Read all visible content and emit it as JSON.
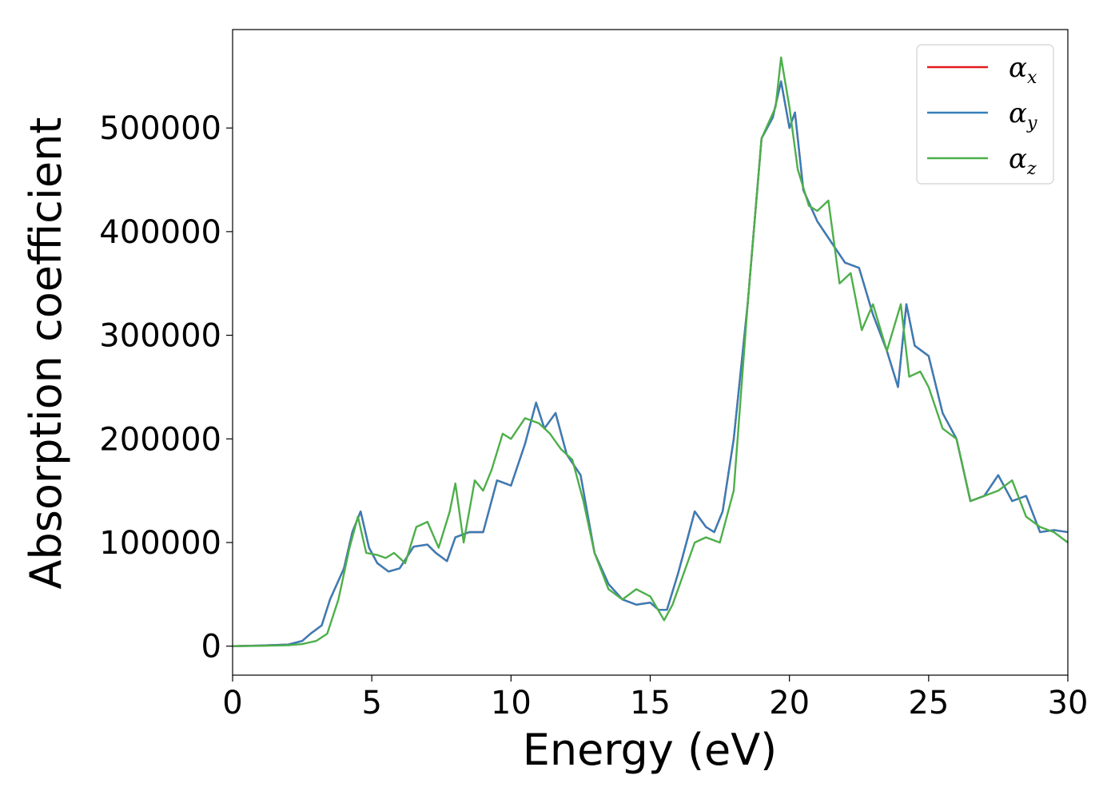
{
  "chart_data": {
    "type": "line",
    "title": "",
    "xlabel": "Energy (eV)",
    "ylabel": "Absorption coefficient",
    "xlim": [
      0,
      30
    ],
    "ylim": [
      -28000,
      595000
    ],
    "x_ticks": [
      0,
      5,
      10,
      15,
      20,
      25,
      30
    ],
    "y_ticks": [
      0,
      100000,
      200000,
      300000,
      400000,
      500000
    ],
    "x_tick_labels": [
      "0",
      "5",
      "10",
      "15",
      "20",
      "25",
      "30"
    ],
    "y_tick_labels": [
      "0",
      "100000",
      "200000",
      "300000",
      "400000",
      "500000"
    ],
    "grid": false,
    "legend": "top-right",
    "series": [
      {
        "name": "α_x",
        "symbol": "α",
        "subscript": "x",
        "color": "#e41a1c",
        "x": [
          0,
          1,
          2,
          2.5,
          2.8,
          3.2,
          3.5,
          4.0,
          4.3,
          4.6,
          4.9,
          5.2,
          5.6,
          6.0,
          6.5,
          7.0,
          7.3,
          7.7,
          8.0,
          8.5,
          9.0,
          9.5,
          10.0,
          10.5,
          10.9,
          11.2,
          11.6,
          12.0,
          12.5,
          13.0,
          13.5,
          14.0,
          14.5,
          15.0,
          15.3,
          15.6,
          16.0,
          16.3,
          16.6,
          17.0,
          17.3,
          17.6,
          18.0,
          18.5,
          19.0,
          19.4,
          19.7,
          20.0,
          20.2,
          20.5,
          21.0,
          21.5,
          22.0,
          22.5,
          23.0,
          23.5,
          23.9,
          24.2,
          24.5,
          25.0,
          25.5,
          26.0,
          26.5,
          27.0,
          27.5,
          28.0,
          28.5,
          29.0,
          29.5,
          30.0
        ],
        "y": [
          0,
          500,
          1500,
          5000,
          12000,
          20000,
          45000,
          75000,
          110000,
          130000,
          95000,
          80000,
          72000,
          75000,
          96000,
          98000,
          90000,
          82000,
          105000,
          110000,
          110000,
          160000,
          155000,
          195000,
          235000,
          210000,
          225000,
          185000,
          165000,
          90000,
          60000,
          45000,
          40000,
          42000,
          35000,
          35000,
          70000,
          100000,
          130000,
          115000,
          110000,
          130000,
          200000,
          330000,
          490000,
          510000,
          545000,
          500000,
          515000,
          440000,
          410000,
          390000,
          370000,
          365000,
          320000,
          285000,
          250000,
          330000,
          290000,
          280000,
          225000,
          200000,
          140000,
          145000,
          165000,
          140000,
          145000,
          110000,
          112000,
          110000
        ]
      },
      {
        "name": "α_y",
        "symbol": "α",
        "subscript": "y",
        "color": "#377eb8",
        "x": [
          0,
          1,
          2,
          2.5,
          2.8,
          3.2,
          3.5,
          4.0,
          4.3,
          4.6,
          4.9,
          5.2,
          5.6,
          6.0,
          6.5,
          7.0,
          7.3,
          7.7,
          8.0,
          8.5,
          9.0,
          9.5,
          10.0,
          10.5,
          10.9,
          11.2,
          11.6,
          12.0,
          12.5,
          13.0,
          13.5,
          14.0,
          14.5,
          15.0,
          15.3,
          15.6,
          16.0,
          16.3,
          16.6,
          17.0,
          17.3,
          17.6,
          18.0,
          18.5,
          19.0,
          19.4,
          19.7,
          20.0,
          20.2,
          20.5,
          21.0,
          21.5,
          22.0,
          22.5,
          23.0,
          23.5,
          23.9,
          24.2,
          24.5,
          25.0,
          25.5,
          26.0,
          26.5,
          27.0,
          27.5,
          28.0,
          28.5,
          29.0,
          29.5,
          30.0
        ],
        "y": [
          0,
          500,
          1500,
          5000,
          12000,
          20000,
          45000,
          75000,
          110000,
          130000,
          95000,
          80000,
          72000,
          75000,
          96000,
          98000,
          90000,
          82000,
          105000,
          110000,
          110000,
          160000,
          155000,
          195000,
          235000,
          210000,
          225000,
          185000,
          165000,
          90000,
          60000,
          45000,
          40000,
          42000,
          35000,
          35000,
          70000,
          100000,
          130000,
          115000,
          110000,
          130000,
          200000,
          330000,
          490000,
          510000,
          545000,
          500000,
          515000,
          440000,
          410000,
          390000,
          370000,
          365000,
          320000,
          285000,
          250000,
          330000,
          290000,
          280000,
          225000,
          200000,
          140000,
          145000,
          165000,
          140000,
          145000,
          110000,
          112000,
          110000
        ]
      },
      {
        "name": "α_z",
        "symbol": "α",
        "subscript": "z",
        "color": "#4daf4a",
        "x": [
          0,
          1,
          2,
          2.5,
          3.0,
          3.4,
          3.8,
          4.2,
          4.5,
          4.8,
          5.2,
          5.5,
          5.8,
          6.2,
          6.6,
          7.0,
          7.4,
          7.8,
          8.0,
          8.3,
          8.7,
          9.0,
          9.3,
          9.7,
          10.0,
          10.5,
          11.0,
          11.4,
          11.8,
          12.2,
          12.6,
          13.0,
          13.5,
          14.0,
          14.5,
          15.0,
          15.5,
          15.8,
          16.2,
          16.6,
          17.0,
          17.5,
          18.0,
          18.5,
          19.0,
          19.5,
          19.7,
          20.0,
          20.3,
          20.7,
          21.0,
          21.4,
          21.8,
          22.2,
          22.6,
          23.0,
          23.5,
          24.0,
          24.3,
          24.7,
          25.0,
          25.5,
          26.0,
          26.5,
          27.0,
          27.5,
          28.0,
          28.5,
          29.0,
          29.5,
          30.0
        ],
        "y": [
          0,
          300,
          800,
          2000,
          5000,
          12000,
          45000,
          95000,
          125000,
          90000,
          88000,
          85000,
          90000,
          80000,
          115000,
          120000,
          95000,
          130000,
          157000,
          100000,
          160000,
          150000,
          170000,
          205000,
          200000,
          220000,
          215000,
          205000,
          190000,
          180000,
          140000,
          90000,
          55000,
          45000,
          55000,
          48000,
          25000,
          40000,
          70000,
          100000,
          105000,
          100000,
          150000,
          330000,
          490000,
          520000,
          568000,
          520000,
          460000,
          425000,
          420000,
          430000,
          350000,
          360000,
          305000,
          330000,
          285000,
          330000,
          260000,
          265000,
          250000,
          210000,
          200000,
          140000,
          145000,
          150000,
          160000,
          125000,
          115000,
          110000,
          100000
        ]
      }
    ]
  }
}
